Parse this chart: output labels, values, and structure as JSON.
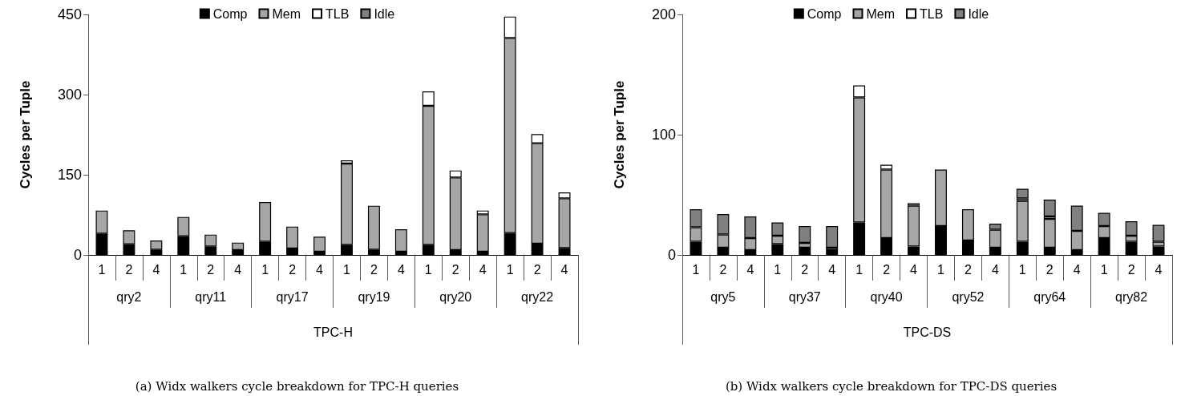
{
  "chart_data": [
    {
      "type": "bar",
      "title": "(a) Widx walkers cycle breakdown for TPC-H queries",
      "ylabel": "Cycles per Tuple",
      "xlabel": "TPC-H",
      "stacked": true,
      "legend": "top",
      "grid": false,
      "categories": [
        "1",
        "2",
        "4",
        "1",
        "2",
        "4",
        "1",
        "2",
        "4",
        "1",
        "2",
        "4",
        "1",
        "2",
        "4",
        "1",
        "2",
        "4"
      ],
      "annotations": [
        "qry2",
        "qry11",
        "qry17",
        "qry19",
        "qry20",
        "qry22"
      ],
      "ylim": [
        0,
        450
      ],
      "yticks": [
        0,
        150,
        300,
        450
      ],
      "series": [
        {
          "name": "Comp",
          "color": "#000000",
          "values": [
            40,
            20,
            10,
            35,
            16,
            9,
            25,
            12,
            6,
            19,
            10,
            6,
            19,
            9,
            6,
            41,
            21,
            13
          ]
        },
        {
          "name": "Mem",
          "color": "#a6a6a6",
          "values": [
            43,
            26,
            17,
            36,
            22,
            14,
            74,
            41,
            28,
            152,
            82,
            42,
            260,
            136,
            70,
            365,
            188,
            93
          ]
        },
        {
          "name": "TLB",
          "color": "#ffffff",
          "values": [
            null,
            null,
            null,
            null,
            null,
            null,
            null,
            null,
            null,
            6,
            null,
            null,
            27,
            13,
            7,
            40,
            17,
            11
          ]
        },
        {
          "name": "Idle",
          "color": "#808080",
          "values": [
            null,
            null,
            null,
            null,
            null,
            null,
            null,
            null,
            null,
            null,
            null,
            null,
            null,
            null,
            null,
            null,
            null,
            null
          ]
        }
      ]
    },
    {
      "type": "bar",
      "title": "(b) Widx walkers cycle breakdown for TPC-DS queries",
      "ylabel": "Cycles per Tuple",
      "xlabel": "TPC-DS",
      "stacked": true,
      "legend": "top",
      "grid": false,
      "categories": [
        "1",
        "2",
        "4",
        "1",
        "2",
        "4",
        "1",
        "2",
        "4",
        "1",
        "2",
        "4",
        "1",
        "2",
        "4",
        "1",
        "2",
        "4"
      ],
      "annotations": [
        "qry5",
        "qry37",
        "qry40",
        "qry52",
        "qry64",
        "qry82"
      ],
      "ylim": [
        0,
        200
      ],
      "yticks": [
        0,
        100,
        200
      ],
      "series": [
        {
          "name": "Comp",
          "color": "#000000",
          "values": [
            11,
            6,
            4,
            9,
            6,
            4,
            27,
            14,
            7,
            24,
            12,
            6,
            11,
            6,
            4,
            14,
            11,
            7
          ]
        },
        {
          "name": "Mem",
          "color": "#a6a6a6",
          "values": [
            12,
            11,
            10,
            7,
            4,
            2,
            104,
            57,
            34,
            47,
            26,
            15,
            34,
            24,
            16,
            10,
            5,
            4
          ]
        },
        {
          "name": "TLB",
          "color": "#ffffff",
          "values": [
            null,
            null,
            null,
            null,
            null,
            null,
            10,
            4,
            2,
            null,
            null,
            null,
            2,
            2,
            null,
            null,
            null,
            null
          ]
        },
        {
          "name": "Idle",
          "color": "#808080",
          "values": [
            15,
            17,
            18,
            11,
            14,
            18,
            null,
            null,
            null,
            null,
            null,
            5,
            8,
            14,
            21,
            11,
            12,
            14
          ]
        }
      ]
    }
  ]
}
